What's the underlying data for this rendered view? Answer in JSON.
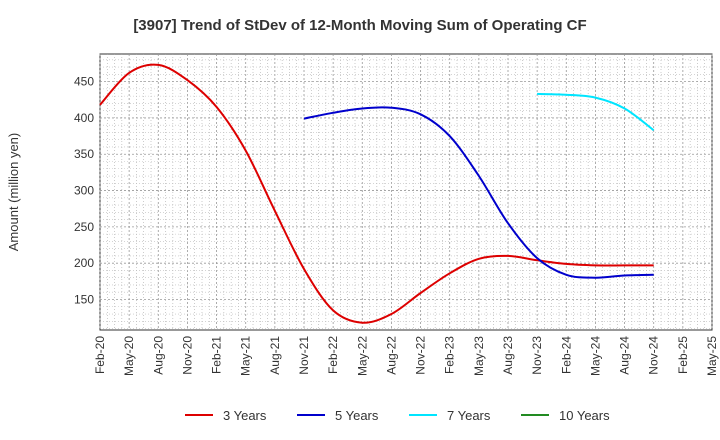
{
  "chart_data": {
    "type": "line",
    "title": "[3907]  Trend of StDev of 12-Month Moving Sum of Operating CF",
    "ylabel": "Amount (million yen)",
    "xlabel": "",
    "categories": [
      "Feb-20",
      "May-20",
      "Aug-20",
      "Nov-20",
      "Feb-21",
      "May-21",
      "Aug-21",
      "Nov-21",
      "Feb-22",
      "May-22",
      "Aug-22",
      "Nov-22",
      "Feb-23",
      "May-23",
      "Aug-23",
      "Nov-23",
      "Feb-24",
      "May-24",
      "Aug-24",
      "Nov-24",
      "Feb-25",
      "May-25"
    ],
    "ylim": [
      108,
      488
    ],
    "yticks": [
      150,
      200,
      250,
      300,
      350,
      400,
      450
    ],
    "grid": true,
    "legend_position": "bottom",
    "series": [
      {
        "name": "3 Years",
        "color": "#dd0000",
        "values": [
          418,
          462,
          473,
          452,
          415,
          355,
          272,
          192,
          135,
          118,
          130,
          159,
          186,
          206,
          210,
          204,
          199,
          197,
          197,
          197,
          null,
          null
        ]
      },
      {
        "name": "5 Years",
        "color": "#0000cc",
        "values": [
          null,
          null,
          null,
          null,
          null,
          null,
          null,
          399,
          407,
          413,
          414,
          405,
          375,
          320,
          255,
          207,
          184,
          180,
          183,
          184,
          null,
          null
        ]
      },
      {
        "name": "7 Years",
        "color": "#00e5ff",
        "values": [
          null,
          null,
          null,
          null,
          null,
          null,
          null,
          null,
          null,
          null,
          null,
          null,
          null,
          null,
          null,
          433,
          432,
          428,
          413,
          383,
          null,
          null
        ]
      },
      {
        "name": "10 Years",
        "color": "#228b22",
        "values": [
          null,
          null,
          null,
          null,
          null,
          null,
          null,
          null,
          null,
          null,
          null,
          null,
          null,
          null,
          null,
          null,
          null,
          null,
          null,
          null,
          null,
          null
        ]
      }
    ]
  }
}
